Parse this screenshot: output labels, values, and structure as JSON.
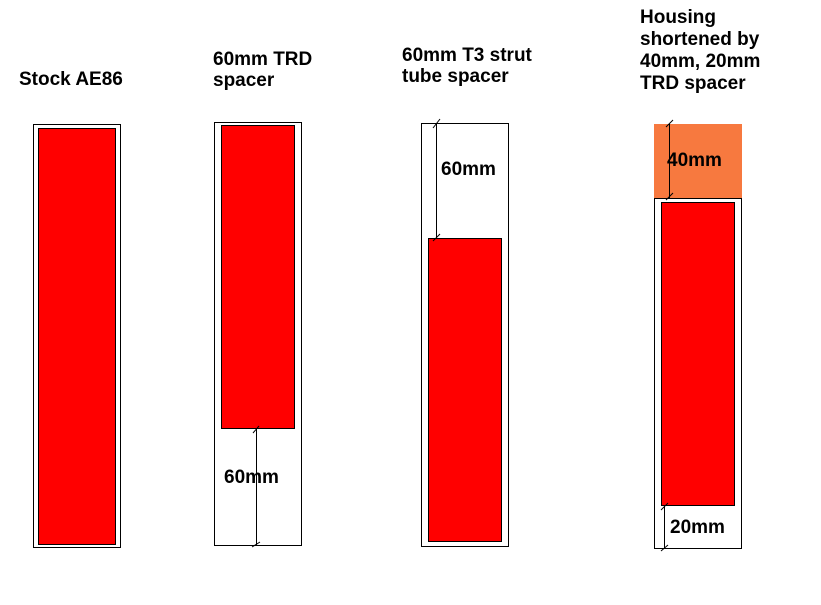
{
  "columns": [
    {
      "title_lines": [
        "Stock AE86"
      ]
    },
    {
      "title_lines": [
        "60mm TRD",
        "spacer"
      ],
      "dimension_label": "60mm"
    },
    {
      "title_lines": [
        "60mm T3 strut",
        "tube spacer"
      ],
      "dimension_label": "60mm"
    },
    {
      "title_lines": [
        "Housing",
        "shortened by",
        "40mm, 20mm",
        "TRD spacer"
      ],
      "top_dimension_label": "40mm",
      "bottom_dimension_label": "20mm"
    }
  ],
  "colors": {
    "strut": "#ff0000",
    "removed_section": "#f7793f",
    "outline": "#000000"
  }
}
